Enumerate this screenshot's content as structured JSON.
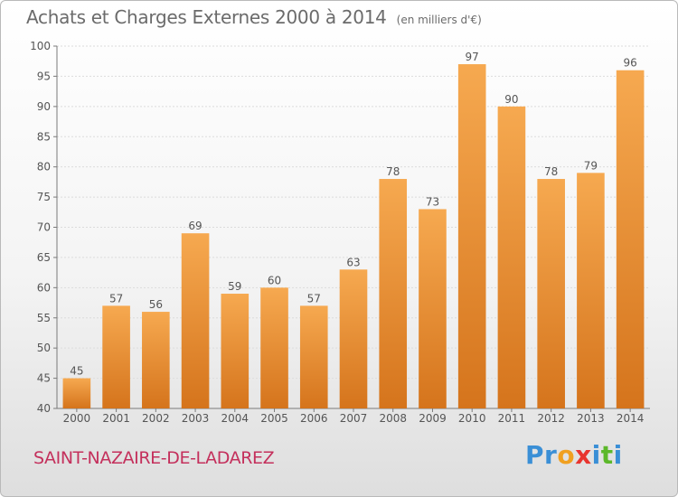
{
  "title": "Achats et Charges Externes 2000 à 2014",
  "unit": "(en milliers d'€)",
  "commune": "SAINT-NAZAIRE-DE-LADAREZ",
  "brand": {
    "letters": [
      "P",
      "r",
      "o",
      "x",
      "i",
      "t",
      "i"
    ],
    "colors": [
      "#3a8fd6",
      "#3a8fd6",
      "#f0a020",
      "#e8352f",
      "#3a8fd6",
      "#5cb82a",
      "#3a8fd6"
    ]
  },
  "colors": {
    "bar_light": "#f6a950",
    "bar_dark": "#d5741c",
    "text": "#6b6b6b",
    "commune": "#c4305c"
  },
  "chart_data": {
    "type": "bar",
    "categories": [
      "2000",
      "2001",
      "2002",
      "2003",
      "2004",
      "2005",
      "2006",
      "2007",
      "2008",
      "2009",
      "2010",
      "2011",
      "2012",
      "2013",
      "2014"
    ],
    "values": [
      45,
      57,
      56,
      69,
      59,
      60,
      57,
      63,
      78,
      73,
      97,
      90,
      78,
      79,
      96
    ],
    "title": "Achats et Charges Externes 2000 à 2014",
    "ylim": [
      40,
      100
    ],
    "yticks": [
      40,
      45,
      50,
      55,
      60,
      65,
      70,
      75,
      80,
      85,
      90,
      95,
      100
    ],
    "grid": true,
    "data_labels": true
  }
}
